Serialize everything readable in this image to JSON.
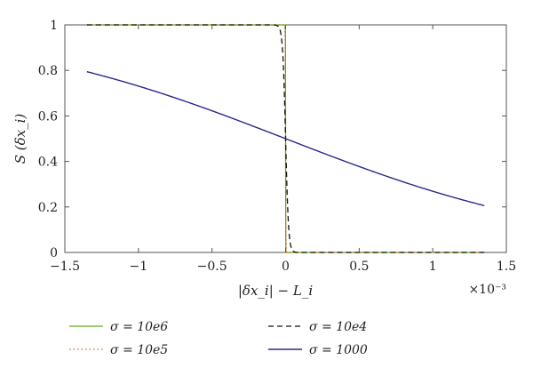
{
  "chart_data": {
    "type": "line",
    "title": "",
    "xlabel": "|δx_i| − L_i",
    "ylabel": "S (δx_i)",
    "x_multiplier": "×10⁻³",
    "xlim": [
      -0.0015,
      0.0015
    ],
    "ylim": [
      0,
      1
    ],
    "grid": false,
    "legend_position": "bottom",
    "x_ticks": [
      -0.0015,
      -0.001,
      -0.0005,
      0,
      0.0005,
      0.001,
      0.0015
    ],
    "x_tick_labels": [
      "−1.5",
      "−1",
      "−0.5",
      "0",
      "0.5",
      "1",
      "1.5"
    ],
    "y_ticks": [
      0,
      0.2,
      0.4,
      0.6,
      0.8,
      1
    ],
    "y_tick_labels": [
      "0",
      "0.2",
      "0.4",
      "0.6",
      "0.8",
      "1"
    ],
    "x_range_data": [
      -0.00135,
      0.00135
    ],
    "series": [
      {
        "name": "σ = 10e6",
        "sigma": 10000000,
        "color": "#66aa22",
        "dash": "solid",
        "width": 1.3
      },
      {
        "name": "σ = 10e5",
        "sigma": 1000000,
        "color": "#e05a20",
        "dash": "dotted",
        "width": 1.3
      },
      {
        "name": "σ = 10e4",
        "sigma": 100000,
        "color": "#111111",
        "dash": "dashed",
        "width": 1.3
      },
      {
        "name": "σ = 1000",
        "sigma": 1000,
        "color": "#2a2a8c",
        "dash": "solid",
        "width": 1.4
      }
    ]
  }
}
